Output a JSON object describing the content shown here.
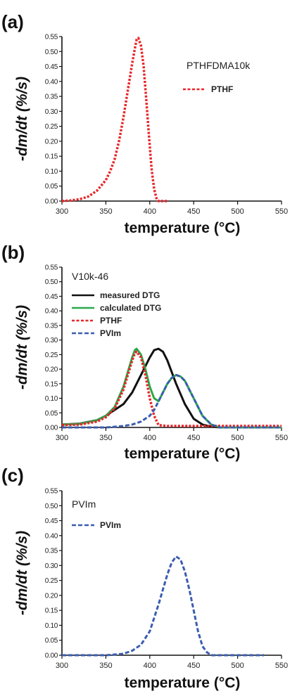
{
  "chart_data": [
    {
      "type": "line",
      "panel_label": "(a)",
      "annotation": "PTHFDMA10k",
      "xlabel": "temperature (°C)",
      "ylabel": "-dm/dt (%/s)",
      "xlim": [
        300,
        550
      ],
      "ylim": [
        0,
        0.55
      ],
      "x_ticks": [
        300,
        350,
        400,
        450,
        500,
        550
      ],
      "y_ticks": [
        "0.00",
        "0.05",
        "0.10",
        "0.15",
        "0.20",
        "0.25",
        "0.30",
        "0.35",
        "0.40",
        "0.45",
        "0.50",
        "0.55"
      ],
      "legend_placement": "top-right",
      "series": [
        {
          "name": "PTHF",
          "color": "#e8262a",
          "dash": "dotted",
          "show_in_legend": true,
          "x": [
            300,
            310,
            320,
            330,
            340,
            350,
            355,
            360,
            365,
            370,
            375,
            380,
            383,
            385,
            387,
            390,
            393,
            396,
            399,
            402,
            405,
            408,
            410,
            420
          ],
          "y": [
            0.0,
            0.002,
            0.006,
            0.015,
            0.035,
            0.07,
            0.1,
            0.14,
            0.2,
            0.28,
            0.37,
            0.46,
            0.51,
            0.54,
            0.545,
            0.52,
            0.45,
            0.34,
            0.22,
            0.11,
            0.04,
            0.005,
            0.0,
            0.0
          ]
        }
      ]
    },
    {
      "type": "line",
      "panel_label": "(b)",
      "annotation": "V10k-46",
      "xlabel": "temperature (°C)",
      "ylabel": "-dm/dt (%/s)",
      "xlim": [
        300,
        550
      ],
      "ylim": [
        0,
        0.55
      ],
      "x_ticks": [
        300,
        350,
        400,
        450,
        500,
        550
      ],
      "y_ticks": [
        "0.00",
        "0.05",
        "0.10",
        "0.15",
        "0.20",
        "0.25",
        "0.30",
        "0.35",
        "0.40",
        "0.45",
        "0.50",
        "0.55"
      ],
      "legend_placement": "top-left",
      "series": [
        {
          "name": "measured DTG",
          "color": "#111111",
          "dash": "solid",
          "show_in_legend": true,
          "x": [
            300,
            320,
            340,
            350,
            360,
            370,
            380,
            390,
            400,
            405,
            410,
            415,
            420,
            430,
            440,
            450,
            460,
            470,
            480,
            550
          ],
          "y": [
            0.01,
            0.013,
            0.025,
            0.04,
            0.06,
            0.08,
            0.12,
            0.18,
            0.24,
            0.265,
            0.27,
            0.26,
            0.23,
            0.15,
            0.08,
            0.03,
            0.01,
            0.003,
            0.0,
            0.0
          ]
        },
        {
          "name": "calculated DTG",
          "color": "#2ba84a",
          "dash": "solid",
          "show_in_legend": true,
          "x": [
            300,
            320,
            340,
            350,
            360,
            370,
            375,
            380,
            383,
            385,
            390,
            395,
            400,
            405,
            410,
            415,
            420,
            425,
            430,
            435,
            440,
            450,
            460,
            470,
            480,
            550
          ],
          "y": [
            0.01,
            0.012,
            0.025,
            0.04,
            0.07,
            0.14,
            0.19,
            0.24,
            0.265,
            0.27,
            0.25,
            0.2,
            0.14,
            0.1,
            0.09,
            0.12,
            0.15,
            0.17,
            0.18,
            0.175,
            0.16,
            0.1,
            0.04,
            0.01,
            0.0,
            0.0
          ]
        },
        {
          "name": "PTHF",
          "color": "#e8262a",
          "dash": "dotted",
          "show_in_legend": true,
          "x": [
            300,
            320,
            340,
            350,
            360,
            370,
            375,
            380,
            383,
            385,
            390,
            395,
            400,
            405,
            410,
            420,
            550
          ],
          "y": [
            0.008,
            0.01,
            0.02,
            0.035,
            0.065,
            0.13,
            0.18,
            0.23,
            0.255,
            0.26,
            0.24,
            0.18,
            0.1,
            0.04,
            0.008,
            0.005,
            0.005
          ]
        },
        {
          "name": "PVIm",
          "color": "#3a5db0",
          "dash": "dashed",
          "show_in_legend": true,
          "x": [
            300,
            350,
            370,
            380,
            390,
            400,
            405,
            410,
            415,
            420,
            425,
            430,
            435,
            440,
            450,
            460,
            470,
            480,
            550
          ],
          "y": [
            0.0,
            0.0,
            0.005,
            0.01,
            0.02,
            0.04,
            0.06,
            0.09,
            0.12,
            0.15,
            0.17,
            0.18,
            0.175,
            0.16,
            0.1,
            0.04,
            0.01,
            0.0,
            0.0
          ]
        }
      ]
    },
    {
      "type": "line",
      "panel_label": "(c)",
      "annotation": "PVIm",
      "xlabel": "temperature (°C)",
      "ylabel": "-dm/dt (%/s)",
      "xlim": [
        300,
        550
      ],
      "ylim": [
        0,
        0.55
      ],
      "x_ticks": [
        300,
        350,
        400,
        450,
        500,
        550
      ],
      "y_ticks": [
        "0.00",
        "0.05",
        "0.10",
        "0.15",
        "0.20",
        "0.25",
        "0.30",
        "0.35",
        "0.40",
        "0.45",
        "0.50",
        "0.55"
      ],
      "legend_placement": "top-left",
      "series": [
        {
          "name": "PVIm",
          "color": "#3a5db0",
          "dash": "dashed",
          "show_in_legend": true,
          "x": [
            300,
            350,
            370,
            380,
            390,
            400,
            410,
            415,
            420,
            425,
            430,
            435,
            440,
            445,
            450,
            455,
            460,
            465,
            470,
            480,
            530
          ],
          "y": [
            0.0,
            0.0,
            0.005,
            0.015,
            0.035,
            0.08,
            0.17,
            0.22,
            0.27,
            0.31,
            0.33,
            0.32,
            0.28,
            0.22,
            0.15,
            0.08,
            0.03,
            0.01,
            0.0,
            0.0,
            0.0
          ]
        }
      ]
    }
  ]
}
